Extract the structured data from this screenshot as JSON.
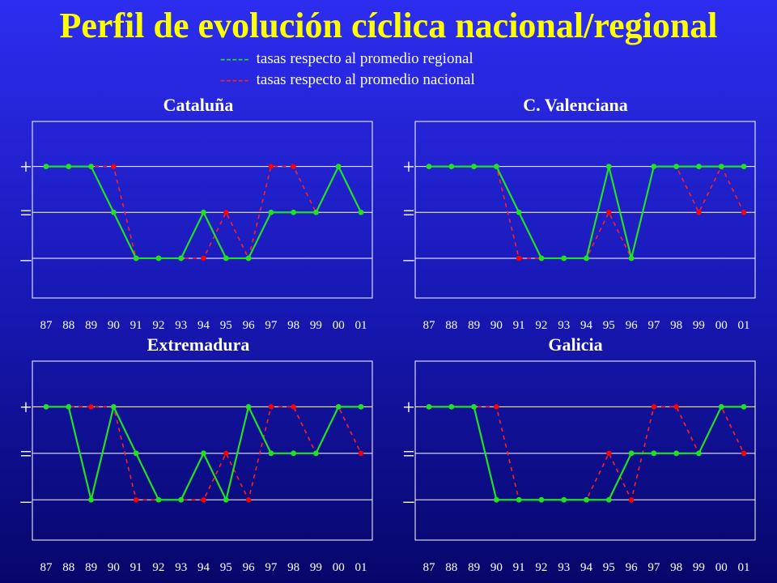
{
  "title": "Perfil de evolución cíclica nacional/regional",
  "legend": {
    "regional": {
      "marker": "-----",
      "label": "tasas respecto al promedio regional",
      "color": "#22e022"
    },
    "national": {
      "marker": "-----",
      "label": "tasas respecto al promedio nacional",
      "color": "#ff2020"
    }
  },
  "colors": {
    "panel_title": "#ffffff",
    "axis": "#ffffff",
    "regional": "#22e022",
    "national": "#ff2020",
    "national_point": "#ff0000"
  },
  "chart_data": [
    {
      "type": "line",
      "title": "Cataluña",
      "categories": [
        "87",
        "88",
        "89",
        "90",
        "91",
        "92",
        "93",
        "94",
        "95",
        "96",
        "97",
        "98",
        "99",
        "00",
        "01"
      ],
      "y_levels": [
        "+",
        "=",
        "–"
      ],
      "ylim": [
        -1,
        1
      ],
      "grid": true,
      "series": [
        {
          "name": "tasas respecto al promedio regional",
          "style": "solid",
          "values": [
            1,
            1,
            1,
            0,
            -1,
            -1,
            -1,
            0,
            -1,
            -1,
            0,
            0,
            0,
            1,
            0
          ]
        },
        {
          "name": "tasas respecto al promedio nacional",
          "style": "dashed",
          "values": [
            1,
            1,
            1,
            1,
            -1,
            -1,
            -1,
            -1,
            0,
            -1,
            1,
            1,
            0,
            1,
            0
          ]
        }
      ]
    },
    {
      "type": "line",
      "title": "C. Valenciana",
      "categories": [
        "87",
        "88",
        "89",
        "90",
        "91",
        "92",
        "93",
        "94",
        "95",
        "96",
        "97",
        "98",
        "99",
        "00",
        "01"
      ],
      "y_levels": [
        "+",
        "=",
        "–"
      ],
      "ylim": [
        -1,
        1
      ],
      "grid": true,
      "series": [
        {
          "name": "tasas respecto al promedio regional",
          "style": "solid",
          "values": [
            1,
            1,
            1,
            1,
            0,
            -1,
            -1,
            -1,
            1,
            -1,
            1,
            1,
            1,
            1,
            1
          ]
        },
        {
          "name": "tasas respecto al promedio nacional",
          "style": "dashed",
          "values": [
            1,
            1,
            1,
            1,
            -1,
            -1,
            -1,
            -1,
            0,
            -1,
            1,
            1,
            0,
            1,
            0
          ]
        }
      ]
    },
    {
      "type": "line",
      "title": "Extremadura",
      "categories": [
        "87",
        "88",
        "89",
        "90",
        "91",
        "92",
        "93",
        "94",
        "95",
        "96",
        "97",
        "98",
        "99",
        "00",
        "01"
      ],
      "y_levels": [
        "+",
        "=",
        "–"
      ],
      "ylim": [
        -1,
        1
      ],
      "grid": true,
      "series": [
        {
          "name": "tasas respecto al promedio regional",
          "style": "solid",
          "values": [
            1,
            1,
            -1,
            1,
            0,
            -1,
            -1,
            0,
            -1,
            1,
            0,
            0,
            0,
            1,
            1
          ]
        },
        {
          "name": "tasas respecto al promedio nacional",
          "style": "dashed",
          "values": [
            1,
            1,
            1,
            1,
            -1,
            -1,
            -1,
            -1,
            0,
            -1,
            1,
            1,
            0,
            1,
            0
          ]
        }
      ]
    },
    {
      "type": "line",
      "title": "Galicia",
      "categories": [
        "87",
        "88",
        "89",
        "90",
        "91",
        "92",
        "93",
        "94",
        "95",
        "96",
        "97",
        "98",
        "99",
        "00",
        "01"
      ],
      "y_levels": [
        "+",
        "=",
        "–"
      ],
      "ylim": [
        -1,
        1
      ],
      "grid": true,
      "series": [
        {
          "name": "tasas respecto al promedio regional",
          "style": "solid",
          "values": [
            1,
            1,
            1,
            -1,
            -1,
            -1,
            -1,
            -1,
            -1,
            0,
            0,
            0,
            0,
            1,
            1
          ]
        },
        {
          "name": "tasas respecto al promedio nacional",
          "style": "dashed",
          "values": [
            1,
            1,
            1,
            1,
            -1,
            -1,
            -1,
            -1,
            0,
            -1,
            1,
            1,
            0,
            1,
            0
          ]
        }
      ]
    }
  ]
}
